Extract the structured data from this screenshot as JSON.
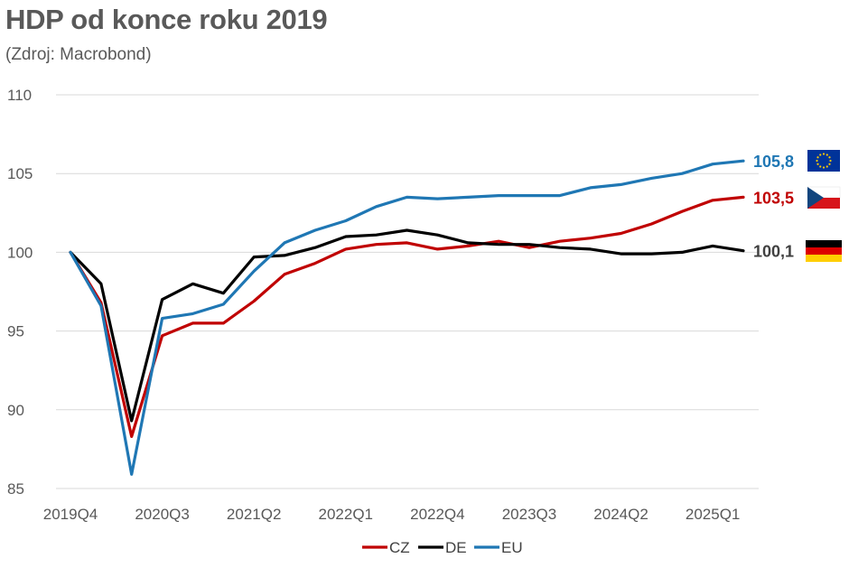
{
  "title": "HDP od konce roku 2019",
  "subtitle": "(Zdroj: Macrobond)",
  "colors": {
    "CZ": "#c00000",
    "DE": "#000000",
    "EU": "#1f77b4",
    "grid": "#d9d9d9",
    "axis_text": "#595959"
  },
  "chart_data": {
    "type": "line",
    "title": "HDP od konce roku 2019",
    "xlabel": "",
    "ylabel": "",
    "ylim": [
      85,
      110
    ],
    "yticks": [
      "110",
      "105",
      "100",
      "95",
      "90",
      "85"
    ],
    "ytick_values": [
      110,
      105,
      100,
      95,
      90,
      85
    ],
    "grid": "horizontal",
    "legend_position": "bottom",
    "x": [
      "2019Q4",
      "2020Q1",
      "2020Q2",
      "2020Q3",
      "2020Q4",
      "2021Q1",
      "2021Q2",
      "2021Q3",
      "2021Q4",
      "2022Q1",
      "2022Q2",
      "2022Q3",
      "2022Q4",
      "2023Q1",
      "2023Q2",
      "2023Q3",
      "2023Q4",
      "2024Q1",
      "2024Q2",
      "2024Q3",
      "2024Q4",
      "2025Q1",
      "2025Q2"
    ],
    "xtick_labels": [
      {
        "index": 0,
        "label": "2019Q4"
      },
      {
        "index": 3,
        "label": "2020Q3"
      },
      {
        "index": 6,
        "label": "2021Q2"
      },
      {
        "index": 9,
        "label": "2022Q1"
      },
      {
        "index": 12,
        "label": "2022Q4"
      },
      {
        "index": 15,
        "label": "2023Q3"
      },
      {
        "index": 18,
        "label": "2024Q2"
      },
      {
        "index": 21,
        "label": "2025Q1"
      }
    ],
    "series": [
      {
        "name": "CZ",
        "end_label": "103,5",
        "values": [
          100.0,
          96.8,
          88.3,
          94.7,
          95.5,
          95.5,
          96.9,
          98.6,
          99.3,
          100.2,
          100.5,
          100.6,
          100.2,
          100.4,
          100.7,
          100.3,
          100.7,
          100.9,
          101.2,
          101.8,
          102.6,
          103.3,
          103.5
        ]
      },
      {
        "name": "DE",
        "end_label": "100,1",
        "values": [
          100.0,
          98.0,
          89.3,
          97.0,
          98.0,
          97.4,
          99.7,
          99.8,
          100.3,
          101.0,
          101.1,
          101.4,
          101.1,
          100.6,
          100.5,
          100.5,
          100.3,
          100.2,
          99.9,
          99.9,
          100.0,
          100.4,
          100.1
        ]
      },
      {
        "name": "EU",
        "end_label": "105,8",
        "values": [
          100.0,
          96.6,
          85.9,
          95.8,
          96.1,
          96.7,
          98.8,
          100.6,
          101.4,
          102.0,
          102.9,
          103.5,
          103.4,
          103.5,
          103.6,
          103.6,
          103.6,
          104.1,
          104.3,
          104.7,
          105.0,
          105.6,
          105.8
        ]
      }
    ]
  },
  "legend": [
    "CZ",
    "DE",
    "EU"
  ],
  "flags": {
    "EU": "eu-flag",
    "CZ": "cz-flag",
    "DE": "de-flag"
  }
}
